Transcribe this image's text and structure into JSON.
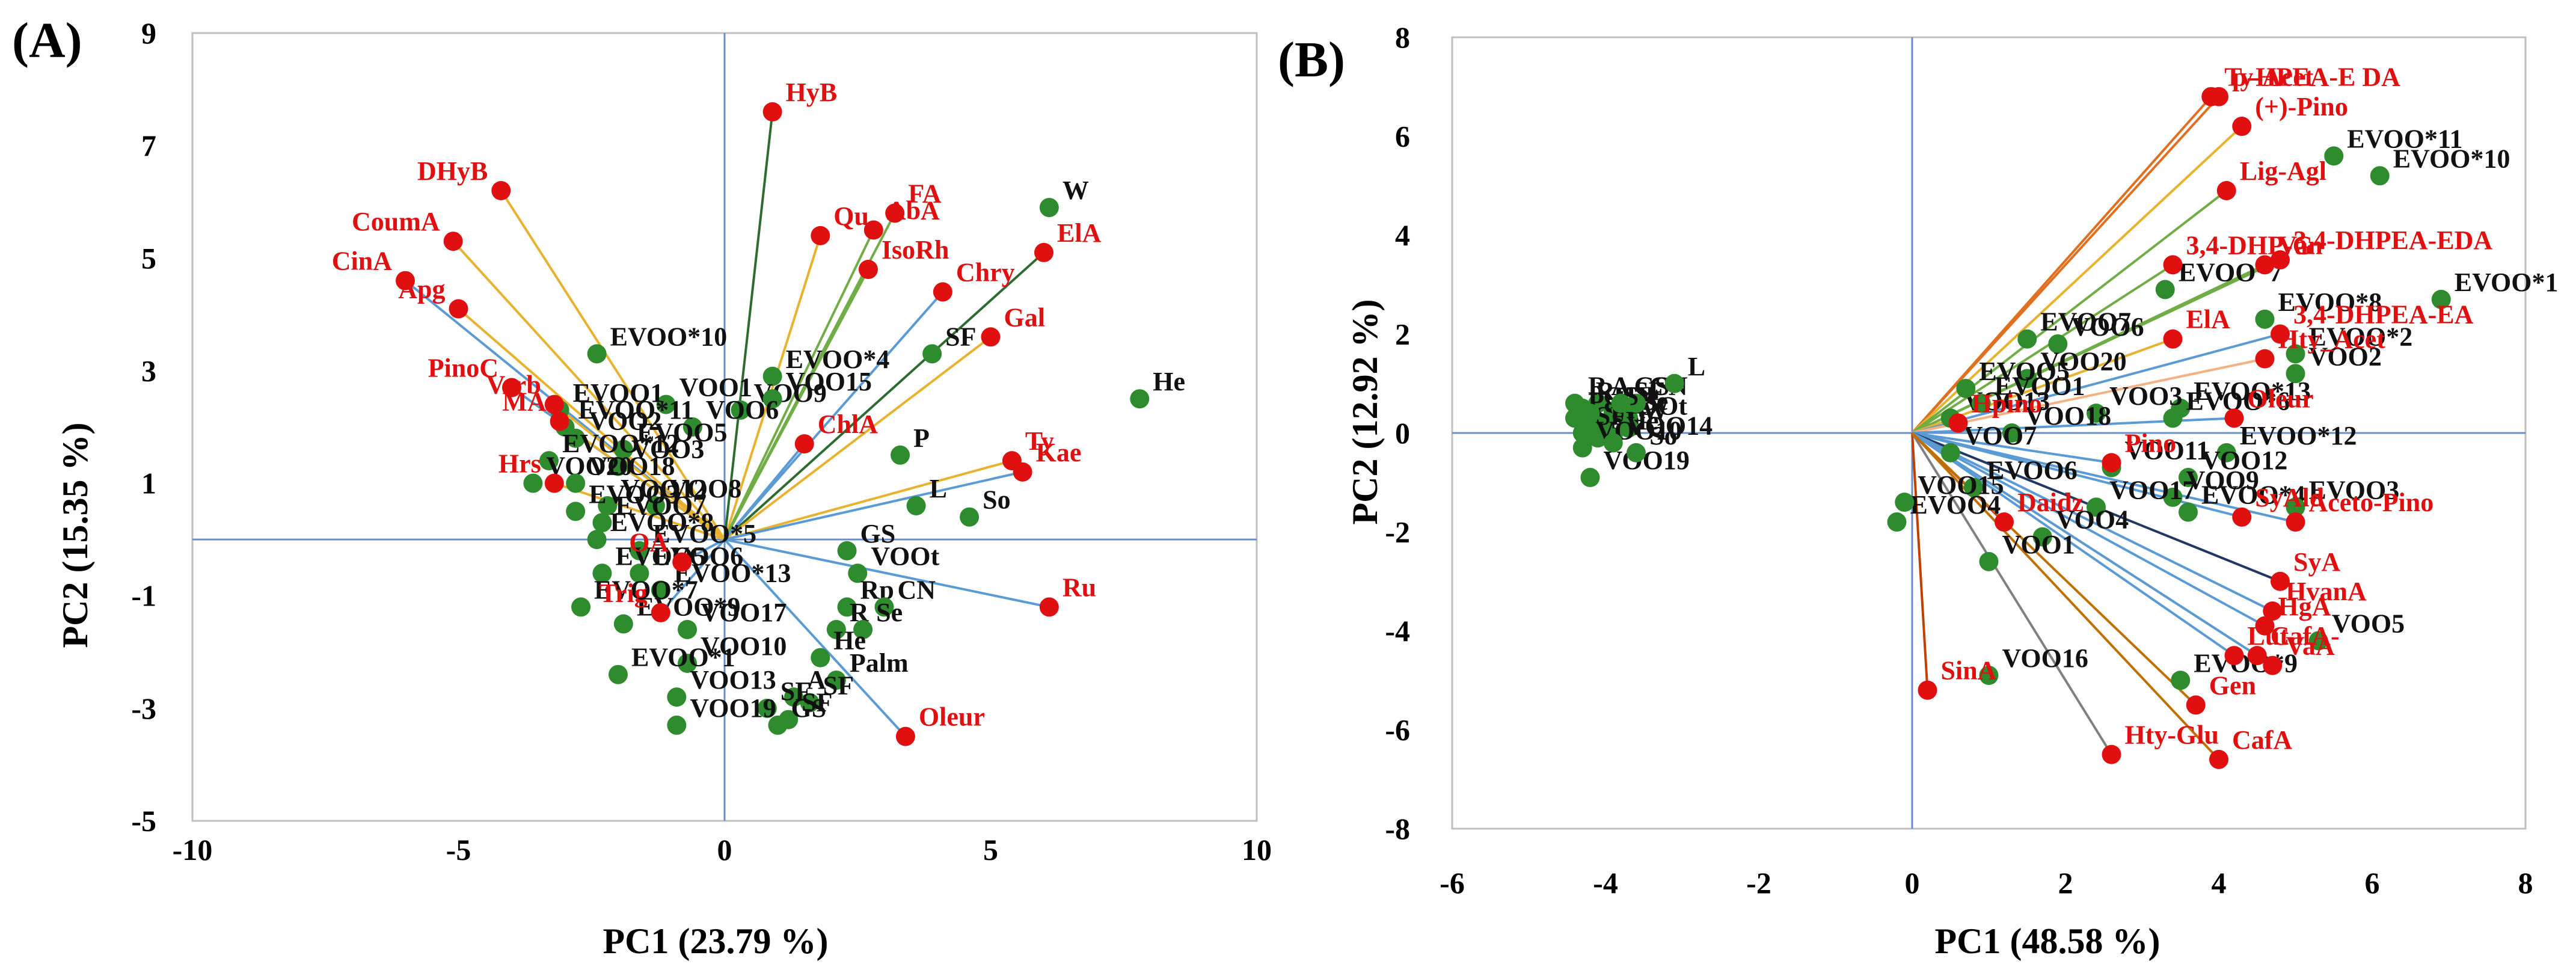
{
  "colors": {
    "sample": "#2e8b2e",
    "variable": "#e01010",
    "sample_text": "#111111",
    "variable_text": "#e01010",
    "axis_line": "#6a8fc8",
    "frame": "#bfbfbf"
  },
  "chart_data": [
    {
      "type": "scatter",
      "panel": "(A)",
      "xlabel": "PC1 (23.79 %)",
      "ylabel": "PC2 (15.35 %)",
      "xlim": [
        -10,
        10
      ],
      "ylim": [
        -5,
        9
      ],
      "xticks": [
        "-10",
        "-5",
        "0",
        "5",
        "10"
      ],
      "yticks": [
        "-5",
        "-3",
        "-1",
        "1",
        "3",
        "5",
        "7",
        "9"
      ],
      "variables": [
        {
          "name": "HyB",
          "x": 0.9,
          "y": 7.6,
          "line": "#2e6b2e"
        },
        {
          "name": "DHyB",
          "x": -4.2,
          "y": 6.2,
          "line": "#e8b22e"
        },
        {
          "name": "CoumA",
          "x": -5.1,
          "y": 5.3,
          "line": "#e8b22e"
        },
        {
          "name": "CinA",
          "x": -6.0,
          "y": 4.6,
          "line": "#5b9bd5"
        },
        {
          "name": "Apg",
          "x": -5.0,
          "y": 4.1,
          "line": "#e8b22e"
        },
        {
          "name": "Qu",
          "x": 1.8,
          "y": 5.4,
          "line": "#e8b22e"
        },
        {
          "name": "FA",
          "x": 3.2,
          "y": 5.8,
          "line": "#70ad47"
        },
        {
          "name": "AbA",
          "x": 2.8,
          "y": 5.5,
          "line": "#70ad47"
        },
        {
          "name": "IsoRh",
          "x": 2.7,
          "y": 4.8,
          "line": "#70ad47"
        },
        {
          "name": "Chry",
          "x": 4.1,
          "y": 4.4,
          "line": "#5b9bd5"
        },
        {
          "name": "ElA",
          "x": 6.0,
          "y": 5.1,
          "line": "#2e6b2e"
        },
        {
          "name": "Gal",
          "x": 5.0,
          "y": 3.6,
          "line": "#e8b22e"
        },
        {
          "name": "PinoC",
          "x": -4.0,
          "y": 2.7,
          "line": "#5b9bd5"
        },
        {
          "name": "Verb",
          "x": -3.2,
          "y": 2.4,
          "line": "#e8b22e"
        },
        {
          "name": "MA",
          "x": -3.1,
          "y": 2.1,
          "line": "#e8b22e"
        },
        {
          "name": "Hrs",
          "x": -3.2,
          "y": 1.0,
          "line": "#e8b22e"
        },
        {
          "name": "ChlA",
          "x": 1.5,
          "y": 1.7,
          "line": "#5b9bd5"
        },
        {
          "name": "Ty",
          "x": 5.4,
          "y": 1.4,
          "line": "#e8b22e"
        },
        {
          "name": "Kae",
          "x": 5.6,
          "y": 1.2,
          "line": "#5b9bd5"
        },
        {
          "name": "OA",
          "x": -0.8,
          "y": -0.4,
          "line": "#5b9bd5"
        },
        {
          "name": "Trig",
          "x": -1.2,
          "y": -1.3,
          "line": "#5b9bd5"
        },
        {
          "name": "Ru",
          "x": 6.1,
          "y": -1.2,
          "line": "#5b9bd5"
        },
        {
          "name": "Oleur",
          "x": 3.4,
          "y": -3.5,
          "line": "#5b9bd5"
        }
      ],
      "samples": [
        {
          "name": "W",
          "x": 6.1,
          "y": 5.9
        },
        {
          "name": "He",
          "x": 7.8,
          "y": 2.5
        },
        {
          "name": "SF",
          "x": 3.9,
          "y": 3.3
        },
        {
          "name": "P",
          "x": 3.3,
          "y": 1.5
        },
        {
          "name": "L",
          "x": 3.6,
          "y": 0.6
        },
        {
          "name": "So",
          "x": 4.6,
          "y": 0.4
        },
        {
          "name": "GS",
          "x": 2.3,
          "y": -0.2
        },
        {
          "name": "VOOt",
          "x": 2.5,
          "y": -0.6
        },
        {
          "name": "Rp",
          "x": 2.3,
          "y": -1.2
        },
        {
          "name": "CN",
          "x": 3.0,
          "y": -1.2
        },
        {
          "name": "R",
          "x": 2.1,
          "y": -1.6
        },
        {
          "name": "Se",
          "x": 2.6,
          "y": -1.6
        },
        {
          "name": "He",
          "x": 1.8,
          "y": -2.1
        },
        {
          "name": "Palm",
          "x": 2.1,
          "y": -2.5
        },
        {
          "name": "A",
          "x": 1.3,
          "y": -2.8
        },
        {
          "name": "SF",
          "x": 1.6,
          "y": -2.9
        },
        {
          "name": "SF",
          "x": 1.2,
          "y": -3.2
        },
        {
          "name": "GS",
          "x": 1.0,
          "y": -3.3
        },
        {
          "name": "SF",
          "x": 0.8,
          "y": -3.0
        },
        {
          "name": "EVOO*10",
          "x": -2.4,
          "y": 3.3
        },
        {
          "name": "EVOO*4",
          "x": 0.9,
          "y": 2.9
        },
        {
          "name": "VOO1",
          "x": -1.1,
          "y": 2.4
        },
        {
          "name": "VOO9",
          "x": 0.3,
          "y": 2.3
        },
        {
          "name": "VOO15",
          "x": 0.9,
          "y": 2.5
        },
        {
          "name": "EVOO1",
          "x": -3.1,
          "y": 2.3
        },
        {
          "name": "VOO6",
          "x": -0.6,
          "y": 2.0
        },
        {
          "name": "EVOO*11",
          "x": -3.0,
          "y": 2.0
        },
        {
          "name": "VOO2",
          "x": -2.8,
          "y": 1.8
        },
        {
          "name": "EVOO5",
          "x": -1.9,
          "y": 1.6
        },
        {
          "name": "EVOO*12",
          "x": -3.3,
          "y": 1.4
        },
        {
          "name": "VOO3",
          "x": -2.0,
          "y": 1.3
        },
        {
          "name": "VOO20",
          "x": -3.6,
          "y": 1.0
        },
        {
          "name": "VOO18",
          "x": -2.8,
          "y": 1.0
        },
        {
          "name": "VOO12",
          "x": -2.2,
          "y": 0.6
        },
        {
          "name": "VOO8",
          "x": -1.3,
          "y": 0.6
        },
        {
          "name": "EVOO3",
          "x": -2.8,
          "y": 0.5
        },
        {
          "name": "EVOO7",
          "x": -2.3,
          "y": 0.3
        },
        {
          "name": "EVOO*8",
          "x": -2.4,
          "y": 0.0
        },
        {
          "name": "EVOO*5",
          "x": -1.6,
          "y": -0.2
        },
        {
          "name": "EVOO6",
          "x": -1.6,
          "y": -0.6
        },
        {
          "name": "EVOO5",
          "x": -2.3,
          "y": -0.6
        },
        {
          "name": "EVOO*13",
          "x": -1.2,
          "y": -0.9
        },
        {
          "name": "EVOO*7",
          "x": -2.7,
          "y": -1.2
        },
        {
          "name": "EVOO*9",
          "x": -1.9,
          "y": -1.5
        },
        {
          "name": "VOO17",
          "x": -0.7,
          "y": -1.6
        },
        {
          "name": "VOO10",
          "x": -0.7,
          "y": -2.2
        },
        {
          "name": "EVOO*1",
          "x": -2.0,
          "y": -2.4
        },
        {
          "name": "VOO13",
          "x": -0.9,
          "y": -2.8
        },
        {
          "name": "VOO19",
          "x": -0.9,
          "y": -3.3
        }
      ],
      "label_lines": {
        "HyB": "HyB",
        "DHyB": "DHyB",
        "CoumA": "CoumA",
        "CinA": "CinA",
        "Apg": "Apg",
        "Qu": "Qu",
        "FA": "FA",
        "AbA": "AbA",
        "IsoRh": "IsoRh",
        "Chry": "Chry",
        "ElA": "ElA",
        "Gal": "Gal",
        "PinoC": "PinoC",
        "Verb": "Verb",
        "MA": "MA",
        "Hrs": "Hrs",
        "ChlA": "ChlA",
        "Ty": "Ty",
        "Kae": "Kae",
        "OA": "OA",
        "Trig": "Trig",
        "Ru": "Ru",
        "Oleur": "Oleur"
      }
    },
    {
      "type": "scatter",
      "panel": "(B)",
      "xlabel": "PC1 (48.58 %)",
      "ylabel": "PC2 (12.92 %)",
      "xlim": [
        -6,
        8
      ],
      "ylim": [
        -8,
        8
      ],
      "xticks": [
        "-6",
        "-4",
        "-2",
        "0",
        "2",
        "4",
        "6",
        "8"
      ],
      "yticks": [
        "-8",
        "-6",
        "-4",
        "-2",
        "0",
        "2",
        "4",
        "6",
        "8"
      ],
      "variables": [
        {
          "name": "Ty-Acet",
          "x": 3.9,
          "y": 6.8,
          "line": "#e07020"
        },
        {
          "name": "p-HPEA-E DA",
          "x": 4.0,
          "y": 6.8,
          "line": "#e07020"
        },
        {
          "name": "(+)-Pino",
          "x": 4.3,
          "y": 6.2,
          "line": "#e8b22e"
        },
        {
          "name": "Lig-Agl",
          "x": 4.1,
          "y": 4.9,
          "line": "#70ad47"
        },
        {
          "name": "3,4-DHP-G",
          "x": 3.4,
          "y": 3.4,
          "line": "#70ad47"
        },
        {
          "name": "3,4-DHPEA-EDA",
          "x": 4.8,
          "y": 3.5,
          "line": "#70ad47"
        },
        {
          "name": "Van",
          "x": 4.6,
          "y": 3.4,
          "line": "#70ad47"
        },
        {
          "name": "ElA",
          "x": 3.4,
          "y": 1.9,
          "line": "#e8b22e"
        },
        {
          "name": "3,4-DHPEA-EA",
          "x": 4.8,
          "y": 2.0,
          "line": "#5b9bd5"
        },
        {
          "name": "Hty_Acet",
          "x": 4.6,
          "y": 1.5,
          "line": "#f4b183"
        },
        {
          "name": "Hpino",
          "x": 0.6,
          "y": 0.2,
          "line": "#f4b183"
        },
        {
          "name": "Oleur",
          "x": 4.2,
          "y": 0.3,
          "line": "#5b9bd5"
        },
        {
          "name": "Pino",
          "x": 2.6,
          "y": -0.6,
          "line": "#5b9bd5"
        },
        {
          "name": "SyAld",
          "x": 4.3,
          "y": -1.7,
          "line": "#5b9bd5"
        },
        {
          "name": "Aceto-Pino",
          "x": 5.0,
          "y": -1.8,
          "line": "#5b9bd5"
        },
        {
          "name": "Daidz",
          "x": 1.2,
          "y": -1.8,
          "line": "#c00000"
        },
        {
          "name": "SyA",
          "x": 4.8,
          "y": -3.0,
          "line": "#1f3864"
        },
        {
          "name": "HvanA",
          "x": 4.7,
          "y": -3.6,
          "line": "#5b9bd5"
        },
        {
          "name": "HgA",
          "x": 4.6,
          "y": -3.9,
          "line": "#5b9bd5"
        },
        {
          "name": "CafA-",
          "x": 4.5,
          "y": -4.5,
          "line": "#e8b22e"
        },
        {
          "name": "VaA",
          "x": 4.7,
          "y": -4.7,
          "line": "#5b9bd5"
        },
        {
          "name": "Lut",
          "x": 4.2,
          "y": -4.5,
          "line": "#5b9bd5"
        },
        {
          "name": "Gen",
          "x": 3.7,
          "y": -5.5,
          "line": "#c07000"
        },
        {
          "name": "SinA",
          "x": 0.2,
          "y": -5.2,
          "line": "#c04000"
        },
        {
          "name": "Hty-Glu",
          "x": 2.6,
          "y": -6.5,
          "line": "#808080"
        },
        {
          "name": "CafA",
          "x": 4.0,
          "y": -6.6,
          "line": "#c07000"
        }
      ],
      "samples": [
        {
          "name": "EVOO*11",
          "x": 5.5,
          "y": 5.6
        },
        {
          "name": "EVOO*10",
          "x": 6.1,
          "y": 5.2
        },
        {
          "name": "EVOO*1",
          "x": 6.9,
          "y": 2.7
        },
        {
          "name": "EVOO*7",
          "x": 3.3,
          "y": 2.9
        },
        {
          "name": "EVOO*8",
          "x": 4.6,
          "y": 2.3
        },
        {
          "name": "EVOO7",
          "x": 1.5,
          "y": 1.9
        },
        {
          "name": "VOO6",
          "x": 1.9,
          "y": 1.8
        },
        {
          "name": "EVOO*2",
          "x": 5.0,
          "y": 1.6
        },
        {
          "name": "VOO2",
          "x": 5.0,
          "y": 1.2
        },
        {
          "name": "VOO20",
          "x": 1.5,
          "y": 1.1
        },
        {
          "name": "EVOO*13",
          "x": 3.5,
          "y": 0.5
        },
        {
          "name": "EVOO*6",
          "x": 3.4,
          "y": 0.3
        },
        {
          "name": "VOO3",
          "x": 2.4,
          "y": 0.4
        },
        {
          "name": "VOO18",
          "x": 1.3,
          "y": 0.0
        },
        {
          "name": "EVOO*12",
          "x": 4.1,
          "y": -0.4
        },
        {
          "name": "VOO11",
          "x": 2.6,
          "y": -0.7
        },
        {
          "name": "VOO12",
          "x": 3.6,
          "y": -0.9
        },
        {
          "name": "VOO9",
          "x": 3.4,
          "y": -1.3
        },
        {
          "name": "EVOO*4",
          "x": 3.6,
          "y": -1.6
        },
        {
          "name": "VOO17",
          "x": 2.4,
          "y": -1.5
        },
        {
          "name": "EVOO3",
          "x": 5.0,
          "y": -1.5
        },
        {
          "name": "EVOO6",
          "x": 0.8,
          "y": -1.1
        },
        {
          "name": "VOO4",
          "x": 1.7,
          "y": -2.1
        },
        {
          "name": "VOO1",
          "x": 1.0,
          "y": -2.6
        },
        {
          "name": "EVOO4",
          "x": -0.2,
          "y": -1.8
        },
        {
          "name": "VOO15",
          "x": -0.1,
          "y": -1.4
        },
        {
          "name": "VOO5",
          "x": 5.3,
          "y": -4.2
        },
        {
          "name": "EVOO*9",
          "x": 3.5,
          "y": -5.0
        },
        {
          "name": "VOO16",
          "x": 1.0,
          "y": -4.9
        },
        {
          "name": "VOO13",
          "x": 0.5,
          "y": 0.3
        },
        {
          "name": "VOO7",
          "x": 0.5,
          "y": -0.4
        },
        {
          "name": "EVOO5",
          "x": 0.7,
          "y": 0.9
        },
        {
          "name": "EVOO1",
          "x": 0.9,
          "y": 0.6
        },
        {
          "name": "Rp",
          "x": -4.3,
          "y": 0.5
        },
        {
          "name": "A",
          "x": -4.1,
          "y": 0.6
        },
        {
          "name": "He",
          "x": -3.9,
          "y": 0.4
        },
        {
          "name": "Palm",
          "x": -4.4,
          "y": 0.3
        },
        {
          "name": "SF",
          "x": -4.2,
          "y": 0.1
        },
        {
          "name": "VOOt",
          "x": -4.0,
          "y": 0.2
        },
        {
          "name": "SF",
          "x": -3.8,
          "y": 0.5
        },
        {
          "name": "Se",
          "x": -3.7,
          "y": 0.3
        },
        {
          "name": "SF",
          "x": -4.3,
          "y": 0.0
        },
        {
          "name": "SF",
          "x": -4.1,
          "y": -0.1
        },
        {
          "name": "He",
          "x": -3.9,
          "y": -0.1
        },
        {
          "name": "W",
          "x": -3.7,
          "y": 0.1
        },
        {
          "name": "CN",
          "x": -3.6,
          "y": 0.6
        },
        {
          "name": "R",
          "x": -4.4,
          "y": 0.6
        },
        {
          "name": "GS",
          "x": -4.2,
          "y": 0.4
        },
        {
          "name": "GS",
          "x": -3.8,
          "y": 0.6
        },
        {
          "name": "L",
          "x": -3.1,
          "y": 1.0
        },
        {
          "name": "VOO10",
          "x": -4.3,
          "y": -0.3
        },
        {
          "name": "VOO14",
          "x": -3.9,
          "y": -0.2
        },
        {
          "name": "VOO19",
          "x": -4.2,
          "y": -0.9
        },
        {
          "name": "So",
          "x": -3.6,
          "y": -0.4
        }
      ]
    }
  ],
  "labels": {
    "a_panel": "(A)",
    "b_panel": "(B)",
    "a_xlabel": "PC1 (23.79 %)",
    "a_ylabel": "PC2 (15.35 %)",
    "b_xlabel": "PC1 (48.58 %)",
    "b_ylabel": "PC2 (12.92 %)"
  }
}
